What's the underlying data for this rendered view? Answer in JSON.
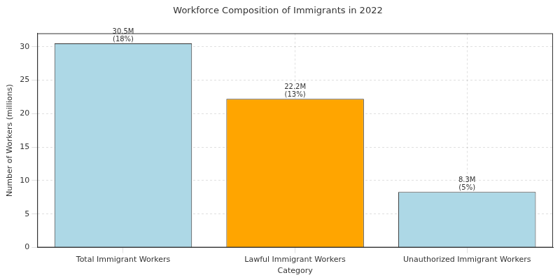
{
  "chart_data": {
    "type": "bar",
    "title": "Workforce Composition of Immigrants in 2022",
    "x_label": "Category",
    "y_label": "Number of Workers (millions)",
    "categories": [
      "Total Immigrant Workers",
      "Lawful Immigrant Workers",
      "Unauthorized Immigrant Workers"
    ],
    "values": [
      30.5,
      22.2,
      8.3
    ],
    "value_labels": [
      "30.5M",
      "22.2M",
      "8.3M"
    ],
    "shares": [
      18,
      13,
      5
    ],
    "share_labels": [
      "(18%)",
      "(13%)",
      "(5%)"
    ],
    "colors": [
      "#add8e6",
      "#ffa500",
      "#add8e6"
    ],
    "data_labels": true,
    "ylim": [
      0,
      32
    ],
    "yticks": [
      0,
      5,
      10,
      15,
      20,
      25,
      30
    ],
    "grid": true
  }
}
